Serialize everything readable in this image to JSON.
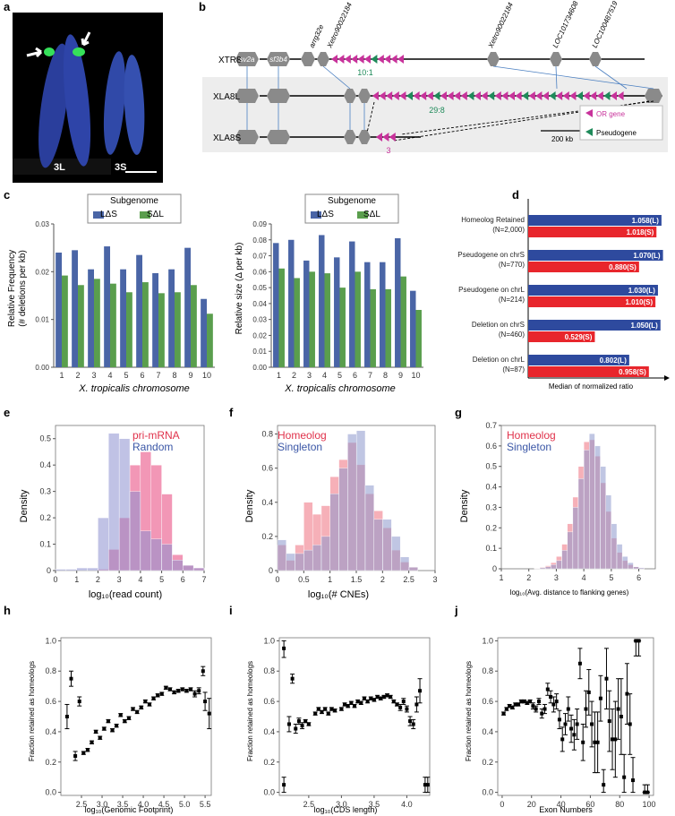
{
  "panel_letters": {
    "a": "a",
    "b": "b",
    "c": "c",
    "d": "d",
    "e": "e",
    "f": "f",
    "g": "g",
    "h": "h",
    "i": "i",
    "j": "j"
  },
  "panel_a": {
    "label_left": "3L",
    "label_right": "3S"
  },
  "panel_b": {
    "rows": [
      "XTR8",
      "XLA8L",
      "XLA8S"
    ],
    "gene_labels": [
      "sv2a",
      "sf3b4"
    ],
    "top_labels": [
      "arrg32e",
      "Xetro90022184",
      "Xetro90022184",
      "LOC101734608",
      "LOC100487519"
    ],
    "ratios": [
      "10:1",
      "29:8",
      "3"
    ],
    "legend": [
      "OR gene",
      "Pseudogene"
    ],
    "scale": "200 kb",
    "colors": {
      "or": "#c8329b",
      "pseudo": "#1f8a5a",
      "gene": "#8a8a8a"
    }
  },
  "panel_c": {
    "legend_title": "Subgenome",
    "legend": [
      "LΔS",
      "SΔL"
    ],
    "xlabel": "X. tropicalis chromosome",
    "left_ylabel1": "Relative Frequency",
    "left_ylabel2": "(# deletions per kb)",
    "right_ylabel": "Relative size (Δ per kb)",
    "colors": {
      "L": "#4a65a6",
      "S": "#5a9e4d"
    }
  },
  "panel_d": {
    "xlabel": "Median of normalized ratio",
    "colors": {
      "L": "#2e4a9e",
      "S": "#e8262c"
    }
  },
  "panel_e": {
    "legend1": "pri-mRNA",
    "legend2": "Random",
    "xlabel": "log₁₀(read count)",
    "ylabel": "Density"
  },
  "panel_f": {
    "legend1": "Homeolog",
    "legend2": "Singleton",
    "xlabel": "log₁₀(# CNEs)",
    "ylabel": "Density"
  },
  "panel_g": {
    "legend1": "Homeolog",
    "legend2": "Singleton",
    "xlabel": "log₁₀(Avg. distance to flanking genes)",
    "ylabel": "Density"
  },
  "panel_h": {
    "xlabel": "log₁₀(Genomic Footprint)",
    "ylabel": "Fraction retained as homeologs"
  },
  "panel_i": {
    "xlabel": "log₁₀(CDS length)",
    "ylabel": "Fraction retained as homeologs"
  },
  "panel_j": {
    "xlabel": "Exon Numbers",
    "ylabel": "Fraction retained as homeologs"
  },
  "chart_data": [
    {
      "type": "bar",
      "panel": "c-left",
      "categories": [
        "1",
        "2",
        "3",
        "4",
        "5",
        "6",
        "7",
        "8",
        "9",
        "10"
      ],
      "series": [
        {
          "name": "LΔS",
          "values": [
            0.024,
            0.0245,
            0.0205,
            0.0253,
            0.0205,
            0.0235,
            0.0197,
            0.0205,
            0.025,
            0.0143
          ]
        },
        {
          "name": "SΔL",
          "values": [
            0.0192,
            0.0172,
            0.0185,
            0.0175,
            0.0157,
            0.0178,
            0.0155,
            0.0157,
            0.0172,
            0.0112
          ]
        }
      ],
      "ylim": [
        0,
        0.03
      ],
      "yticks": [
        0,
        0.01,
        0.02,
        0.03
      ]
    },
    {
      "type": "bar",
      "panel": "c-right",
      "categories": [
        "1",
        "2",
        "3",
        "4",
        "5",
        "6",
        "7",
        "8",
        "9",
        "10"
      ],
      "series": [
        {
          "name": "LΔS",
          "values": [
            0.078,
            0.08,
            0.067,
            0.083,
            0.069,
            0.079,
            0.066,
            0.066,
            0.081,
            0.048
          ]
        },
        {
          "name": "SΔL",
          "values": [
            0.062,
            0.056,
            0.06,
            0.059,
            0.05,
            0.06,
            0.049,
            0.049,
            0.057,
            0.036
          ]
        }
      ],
      "ylim": [
        0,
        0.09
      ],
      "yticks": [
        0,
        0.01,
        0.02,
        0.03,
        0.04,
        0.05,
        0.06,
        0.07,
        0.08,
        0.09
      ]
    },
    {
      "type": "bar",
      "panel": "d",
      "categories": [
        "Homeolog Retained (N=2,000)",
        "Pseudogene on chrS (N=770)",
        "Pseudogene on chrL (N=214)",
        "Deletion on chrS (N=460)",
        "Deletion on chrL (N=87)"
      ],
      "cat_lines": [
        [
          "Homeolog Retained",
          "(N=2,000)"
        ],
        [
          "Pseudogene on chrS",
          "(N=770)"
        ],
        [
          "Pseudogene on chrL",
          "(N=214)"
        ],
        [
          "Deletion on chrS",
          "(N=460)"
        ],
        [
          "Deletion on chrL",
          "(N=87)"
        ]
      ],
      "series": [
        {
          "name": "L",
          "values": [
            1.058,
            1.07,
            1.03,
            1.05,
            0.802
          ],
          "labels": [
            "1.058(L)",
            "1.070(L)",
            "1.030(L)",
            "1.050(L)",
            "0.802(L)"
          ]
        },
        {
          "name": "S",
          "values": [
            1.018,
            0.88,
            1.01,
            0.529,
            0.958
          ],
          "labels": [
            "1.018(S)",
            "0.880(S)",
            "1.010(S)",
            "0.529(S)",
            "0.958(S)"
          ]
        }
      ],
      "xlim": [
        0,
        1.08
      ]
    },
    {
      "type": "bar",
      "panel": "e",
      "xlim": [
        0,
        7
      ],
      "ylim": [
        0,
        0.55
      ],
      "xticks": [
        0,
        1,
        2,
        3,
        4,
        5,
        6,
        7
      ],
      "yticks": [
        0,
        0.1,
        0.2,
        0.3,
        0.4,
        0.5
      ],
      "bin_start": 0,
      "bin_width": 0.5,
      "series": [
        {
          "name": "pri-mRNA",
          "values": [
            0,
            0,
            0,
            0,
            0.005,
            0.08,
            0.2,
            0.4,
            0.45,
            0.4,
            0.29,
            0.06,
            0.02,
            0.01
          ]
        },
        {
          "name": "Random",
          "values": [
            0.005,
            0.005,
            0.01,
            0.01,
            0.2,
            0.52,
            0.5,
            0.3,
            0.15,
            0.12,
            0.1,
            0.04,
            0.02,
            0.01
          ]
        }
      ]
    },
    {
      "type": "bar",
      "panel": "f",
      "xlim": [
        0,
        3
      ],
      "ylim": [
        0,
        0.85
      ],
      "xticks": [
        0,
        0.5,
        1,
        1.5,
        2,
        2.5,
        3
      ],
      "yticks": [
        0,
        0.2,
        0.4,
        0.6,
        0.8
      ],
      "bin_start": 0,
      "bin_width": 0.167,
      "series": [
        {
          "name": "Homeolog",
          "values": [
            0.15,
            0.06,
            0.15,
            0.4,
            0.33,
            0.38,
            0.55,
            0.65,
            0.75,
            0.62,
            0.45,
            0.35,
            0.25,
            0.12,
            0.05,
            0.02
          ]
        },
        {
          "name": "Singleton",
          "values": [
            0.18,
            0.1,
            0.1,
            0.12,
            0.15,
            0.2,
            0.45,
            0.6,
            0.8,
            0.82,
            0.5,
            0.3,
            0.3,
            0.2,
            0.08,
            0.02
          ]
        }
      ]
    },
    {
      "type": "bar",
      "panel": "g",
      "xlim": [
        1,
        6.6
      ],
      "ylim": [
        0,
        0.7
      ],
      "xticks": [
        1,
        2,
        3,
        4,
        5,
        6
      ],
      "yticks": [
        0,
        0.1,
        0.2,
        0.3,
        0.4,
        0.5,
        0.6,
        0.7
      ],
      "bin_start": 2.2,
      "bin_width": 0.2,
      "series": [
        {
          "name": "Homeolog",
          "values": [
            0.003,
            0.008,
            0.015,
            0.03,
            0.06,
            0.12,
            0.22,
            0.35,
            0.5,
            0.62,
            0.63,
            0.55,
            0.42,
            0.28,
            0.15,
            0.08,
            0.04,
            0.02,
            0.01,
            0.004
          ]
        },
        {
          "name": "Singleton",
          "values": [
            0.002,
            0.005,
            0.01,
            0.02,
            0.04,
            0.09,
            0.18,
            0.3,
            0.44,
            0.58,
            0.66,
            0.6,
            0.5,
            0.36,
            0.22,
            0.12,
            0.06,
            0.03,
            0.01,
            0.005
          ]
        }
      ]
    },
    {
      "type": "scatter",
      "panel": "h",
      "xlim": [
        2.0,
        5.65
      ],
      "ylim": [
        -0.02,
        1.02
      ],
      "xticks": [
        2.5,
        3.0,
        3.5,
        4.0,
        4.5,
        5.0,
        5.5
      ],
      "yticks": [
        0,
        0.2,
        0.4,
        0.6,
        0.8,
        1.0
      ],
      "points": [
        [
          2.15,
          0.5,
          0.08
        ],
        [
          2.25,
          0.75,
          0.05
        ],
        [
          2.35,
          0.24,
          0.03
        ],
        [
          2.45,
          0.6,
          0.03
        ],
        [
          2.55,
          0.26,
          0.01
        ],
        [
          2.65,
          0.28,
          0.01
        ],
        [
          2.75,
          0.33,
          0.01
        ],
        [
          2.85,
          0.4,
          0.01
        ],
        [
          2.95,
          0.36,
          0.01
        ],
        [
          3.05,
          0.42,
          0.01
        ],
        [
          3.15,
          0.47,
          0.01
        ],
        [
          3.25,
          0.41,
          0.01
        ],
        [
          3.35,
          0.44,
          0.01
        ],
        [
          3.45,
          0.51,
          0.01
        ],
        [
          3.55,
          0.47,
          0.01
        ],
        [
          3.65,
          0.49,
          0.01
        ],
        [
          3.75,
          0.55,
          0.01
        ],
        [
          3.85,
          0.53,
          0.01
        ],
        [
          3.95,
          0.56,
          0.01
        ],
        [
          4.05,
          0.6,
          0.01
        ],
        [
          4.15,
          0.58,
          0.01
        ],
        [
          4.25,
          0.62,
          0.01
        ],
        [
          4.35,
          0.64,
          0.01
        ],
        [
          4.45,
          0.65,
          0.01
        ],
        [
          4.55,
          0.69,
          0.01
        ],
        [
          4.65,
          0.68,
          0.01
        ],
        [
          4.75,
          0.66,
          0.01
        ],
        [
          4.85,
          0.67,
          0.01
        ],
        [
          4.95,
          0.68,
          0.01
        ],
        [
          5.05,
          0.67,
          0.01
        ],
        [
          5.15,
          0.68,
          0.01
        ],
        [
          5.25,
          0.65,
          0.02
        ],
        [
          5.35,
          0.67,
          0.02
        ],
        [
          5.45,
          0.8,
          0.03
        ],
        [
          5.5,
          0.6,
          0.06
        ],
        [
          5.6,
          0.52,
          0.1
        ]
      ]
    },
    {
      "type": "scatter",
      "panel": "i",
      "xlim": [
        2.05,
        4.35
      ],
      "ylim": [
        -0.02,
        1.02
      ],
      "xticks": [
        2.5,
        3.0,
        3.5,
        4.0
      ],
      "yticks": [
        0,
        0.2,
        0.4,
        0.6,
        0.8,
        1.0
      ],
      "points": [
        [
          2.12,
          0.95,
          0.06
        ],
        [
          2.12,
          0.05,
          0.05
        ],
        [
          2.2,
          0.45,
          0.05
        ],
        [
          2.25,
          0.75,
          0.03
        ],
        [
          2.3,
          0.42,
          0.03
        ],
        [
          2.35,
          0.47,
          0.02
        ],
        [
          2.4,
          0.44,
          0.02
        ],
        [
          2.45,
          0.47,
          0.01
        ],
        [
          2.5,
          0.45,
          0.01
        ],
        [
          2.6,
          0.52,
          0.01
        ],
        [
          2.65,
          0.55,
          0.01
        ],
        [
          2.7,
          0.53,
          0.01
        ],
        [
          2.75,
          0.55,
          0.01
        ],
        [
          2.8,
          0.52,
          0.01
        ],
        [
          2.85,
          0.55,
          0.01
        ],
        [
          2.9,
          0.54,
          0.01
        ],
        [
          3.0,
          0.55,
          0.01
        ],
        [
          3.05,
          0.58,
          0.01
        ],
        [
          3.1,
          0.57,
          0.01
        ],
        [
          3.15,
          0.59,
          0.01
        ],
        [
          3.2,
          0.57,
          0.01
        ],
        [
          3.25,
          0.6,
          0.01
        ],
        [
          3.3,
          0.59,
          0.01
        ],
        [
          3.35,
          0.62,
          0.01
        ],
        [
          3.4,
          0.6,
          0.01
        ],
        [
          3.45,
          0.62,
          0.01
        ],
        [
          3.5,
          0.61,
          0.01
        ],
        [
          3.55,
          0.63,
          0.01
        ],
        [
          3.6,
          0.62,
          0.01
        ],
        [
          3.65,
          0.63,
          0.01
        ],
        [
          3.7,
          0.64,
          0.01
        ],
        [
          3.75,
          0.63,
          0.01
        ],
        [
          3.8,
          0.6,
          0.01
        ],
        [
          3.85,
          0.58,
          0.01
        ],
        [
          3.9,
          0.56,
          0.02
        ],
        [
          3.95,
          0.6,
          0.02
        ],
        [
          4.0,
          0.55,
          0.02
        ],
        [
          4.05,
          0.47,
          0.03
        ],
        [
          4.1,
          0.45,
          0.03
        ],
        [
          4.15,
          0.58,
          0.05
        ],
        [
          4.2,
          0.67,
          0.08
        ],
        [
          4.28,
          0.05,
          0.05
        ],
        [
          4.32,
          0.05,
          0.05
        ]
      ]
    },
    {
      "type": "scatter",
      "panel": "j",
      "xlim": [
        -3,
        103
      ],
      "ylim": [
        -0.02,
        1.02
      ],
      "xticks": [
        0,
        20,
        40,
        60,
        80,
        100
      ],
      "yticks": [
        0,
        0.2,
        0.4,
        0.6,
        0.8,
        1.0
      ],
      "points": [
        [
          1,
          0.52,
          0.01
        ],
        [
          3,
          0.55,
          0.01
        ],
        [
          5,
          0.57,
          0.01
        ],
        [
          7,
          0.56,
          0.01
        ],
        [
          9,
          0.58,
          0.01
        ],
        [
          11,
          0.58,
          0.01
        ],
        [
          13,
          0.6,
          0.01
        ],
        [
          15,
          0.6,
          0.01
        ],
        [
          17,
          0.59,
          0.01
        ],
        [
          19,
          0.6,
          0.01
        ],
        [
          21,
          0.57,
          0.02
        ],
        [
          23,
          0.55,
          0.02
        ],
        [
          25,
          0.6,
          0.02
        ],
        [
          27,
          0.52,
          0.03
        ],
        [
          29,
          0.55,
          0.03
        ],
        [
          31,
          0.68,
          0.04
        ],
        [
          33,
          0.63,
          0.04
        ],
        [
          35,
          0.58,
          0.05
        ],
        [
          37,
          0.6,
          0.05
        ],
        [
          39,
          0.48,
          0.06
        ],
        [
          41,
          0.35,
          0.08
        ],
        [
          43,
          0.45,
          0.07
        ],
        [
          45,
          0.55,
          0.08
        ],
        [
          47,
          0.42,
          0.09
        ],
        [
          49,
          0.38,
          0.1
        ],
        [
          51,
          0.45,
          0.1
        ],
        [
          53,
          0.85,
          0.1
        ],
        [
          55,
          0.33,
          0.12
        ],
        [
          57,
          0.55,
          0.12
        ],
        [
          59,
          0.66,
          0.15
        ],
        [
          61,
          0.45,
          0.15
        ],
        [
          63,
          0.33,
          0.2
        ],
        [
          65,
          0.33,
          0.2
        ],
        [
          67,
          0.62,
          0.15
        ],
        [
          69,
          0.05,
          0.1
        ],
        [
          71,
          0.75,
          0.2
        ],
        [
          73,
          0.47,
          0.2
        ],
        [
          75,
          0.35,
          0.2
        ],
        [
          77,
          0.35,
          0.25
        ],
        [
          79,
          0.55,
          0.2
        ],
        [
          81,
          0.5,
          0.25
        ],
        [
          83,
          0.1,
          0.15
        ],
        [
          85,
          0.65,
          0.2
        ],
        [
          87,
          0.45,
          0.2
        ],
        [
          89,
          0.08,
          0.15
        ],
        [
          91,
          1.0,
          0.1
        ],
        [
          93,
          1.0,
          0.1
        ],
        [
          97,
          0.0,
          0.05
        ],
        [
          99,
          0.0,
          0.05
        ]
      ]
    }
  ]
}
